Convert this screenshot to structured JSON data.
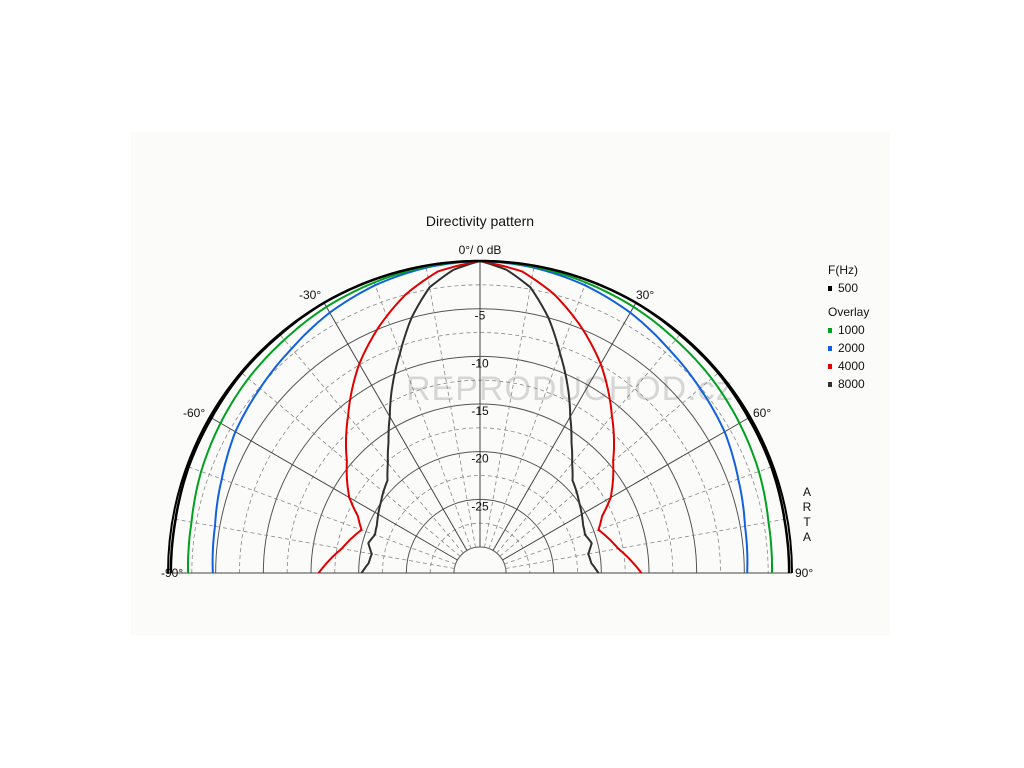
{
  "chart_data": {
    "type": "polar-line",
    "title": "Directivity pattern",
    "top_label": "0°/ 0 dB",
    "angle_range": [
      -90,
      90
    ],
    "angle_ticks": [
      -90,
      -60,
      -30,
      30,
      60,
      90
    ],
    "angle_tick_labels": [
      "-90°",
      "-60°",
      "-30°",
      "30°",
      "60°",
      "90°"
    ],
    "radial_range_db": [
      -30,
      0
    ],
    "radial_ticks_db": [
      -5,
      -10,
      -15,
      -20,
      -25
    ],
    "radial_tick_labels": [
      "-5",
      "-10",
      "-15",
      "-20",
      "-25"
    ],
    "grid": true,
    "legend": {
      "heading": "F(Hz)",
      "overlay_heading": "Overlay",
      "placement": "right"
    },
    "series": [
      {
        "name": "500",
        "color": "#000000",
        "role": "primary",
        "angles": [
          0,
          10,
          20,
          30,
          40,
          50,
          60,
          70,
          80,
          90
        ],
        "values_db": [
          0,
          0,
          0,
          0,
          -0.1,
          -0.1,
          -0.2,
          -0.2,
          -0.3,
          -0.3
        ]
      },
      {
        "name": "1000",
        "color": "#00a020",
        "role": "overlay",
        "angles": [
          0,
          10,
          20,
          30,
          40,
          50,
          60,
          70,
          80,
          90
        ],
        "values_db": [
          0,
          -0.1,
          -0.3,
          -0.5,
          -0.8,
          -1.0,
          -1.3,
          -1.6,
          -2.0,
          -2.1
        ]
      },
      {
        "name": "2000",
        "color": "#1060e0",
        "role": "overlay",
        "angles": [
          0,
          10,
          20,
          30,
          40,
          50,
          60,
          70,
          80,
          90
        ],
        "values_db": [
          0,
          -0.2,
          -0.6,
          -1.2,
          -2.0,
          -2.6,
          -3.1,
          -3.9,
          -4.5,
          -4.7
        ]
      },
      {
        "name": "4000",
        "color": "#e00000",
        "role": "overlay",
        "angles": [
          0,
          8,
          15,
          22,
          30,
          40,
          50,
          60,
          65,
          70,
          80,
          90
        ],
        "values_db": [
          0,
          -0.8,
          -2.5,
          -4.7,
          -7.4,
          -11.2,
          -14.5,
          -16.9,
          -18.6,
          -19.5,
          -18.0,
          -15.8
        ]
      },
      {
        "name": "8000",
        "color": "#303030",
        "role": "overlay",
        "angles": [
          0,
          5,
          10,
          15,
          20,
          25,
          30,
          35,
          40,
          45,
          50,
          55,
          60,
          65,
          70,
          75,
          80,
          85,
          90
        ],
        "values_db": [
          0,
          -0.8,
          -2.3,
          -5.0,
          -8.2,
          -11.0,
          -13.8,
          -16.0,
          -17.7,
          -19.0,
          -19.5,
          -20.0,
          -20.4,
          -20.8,
          -21.0,
          -20.6,
          -21.2,
          -21.0,
          -20.3
        ]
      }
    ],
    "watermark": "REPRODUCHOD.cz",
    "side_label": [
      "A",
      "R",
      "T",
      "A"
    ]
  }
}
